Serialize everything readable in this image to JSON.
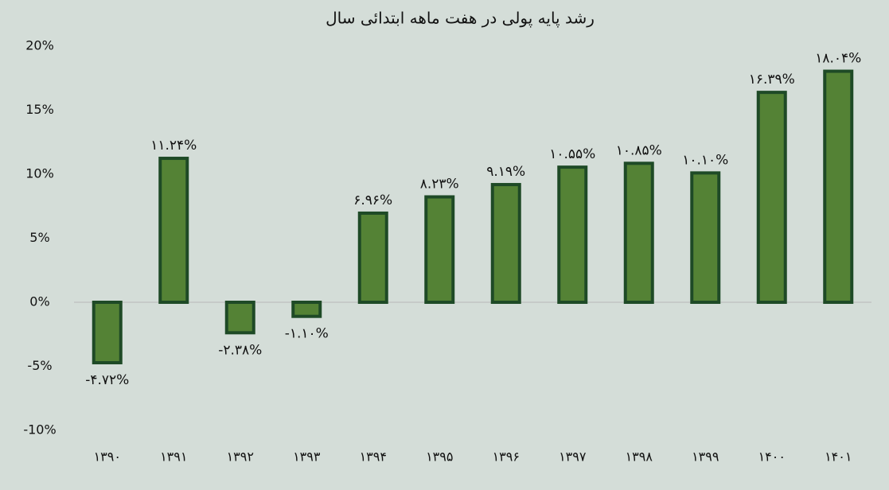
{
  "chart_data": {
    "type": "bar",
    "title": "رشد پایه پولی در هفت ماهه ابتدائی سال",
    "categories": [
      "۱۳۹۰",
      "۱۳۹۱",
      "۱۳۹۲",
      "۱۳۹۳",
      "۱۳۹۴",
      "۱۳۹۵",
      "۱۳۹۶",
      "۱۳۹۷",
      "۱۳۹۸",
      "۱۳۹۹",
      "۱۴۰۰",
      "۱۴۰۱"
    ],
    "values": [
      -4.72,
      11.24,
      -2.38,
      -1.1,
      6.96,
      8.23,
      9.19,
      10.55,
      10.85,
      10.1,
      16.39,
      18.04
    ],
    "value_labels": [
      "-۴.۷۲%",
      "۱۱.۲۴%",
      "-۲.۳۸%",
      "-۱.۱۰%",
      "۶.۹۶%",
      "۸.۲۳%",
      "۹.۱۹%",
      "۱۰.۵۵%",
      "۱۰.۸۵%",
      "۱۰.۱۰%",
      "۱۶.۳۹%",
      "۱۸.۰۴%"
    ],
    "color": "#548235",
    "ylim": [
      -10,
      20
    ],
    "yticks": [
      {
        "value": -10,
        "label": "-10%"
      },
      {
        "value": -5,
        "label": "-5%"
      },
      {
        "value": 0,
        "label": "0%"
      },
      {
        "value": 5,
        "label": "5%"
      },
      {
        "value": 10,
        "label": "10%"
      },
      {
        "value": 15,
        "label": "15%"
      },
      {
        "value": 20,
        "label": "20%"
      }
    ],
    "grid": false
  }
}
